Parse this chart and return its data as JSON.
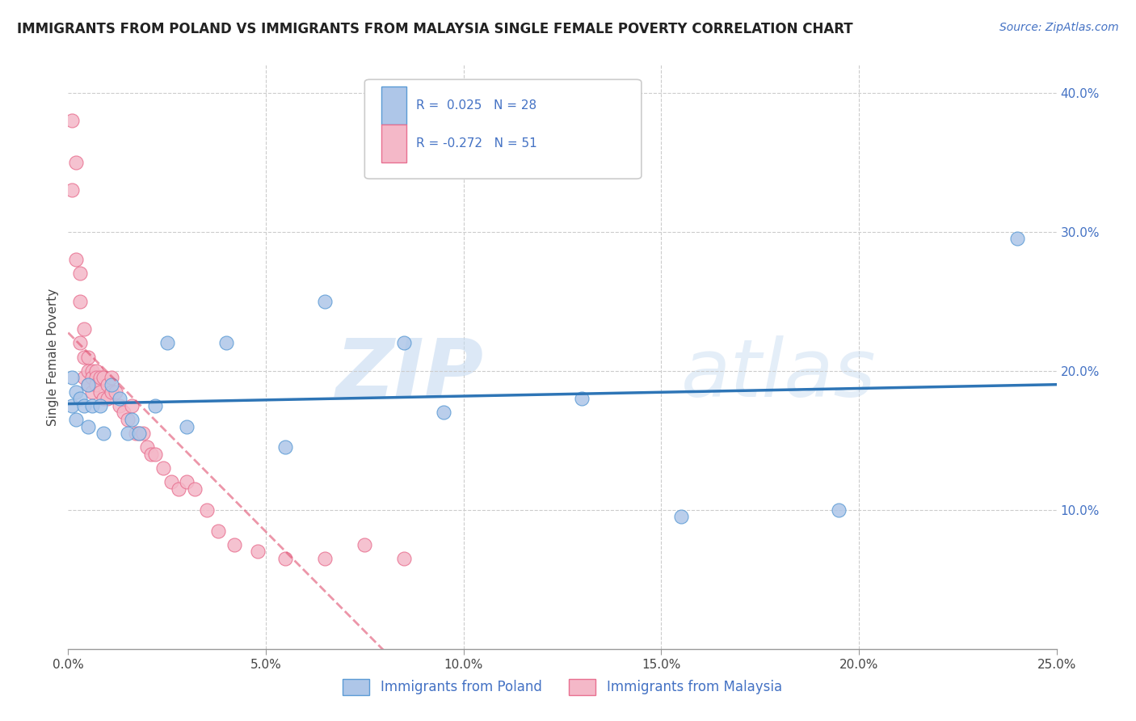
{
  "title": "IMMIGRANTS FROM POLAND VS IMMIGRANTS FROM MALAYSIA SINGLE FEMALE POVERTY CORRELATION CHART",
  "source_text": "Source: ZipAtlas.com",
  "ylabel": "Single Female Poverty",
  "xlim": [
    0.0,
    0.25
  ],
  "ylim": [
    0.0,
    0.42
  ],
  "xtick_labels": [
    "0.0%",
    "",
    "",
    "",
    "",
    "",
    "",
    "",
    "",
    "",
    "5.0%",
    "",
    "",
    "",
    "",
    "",
    "",
    "",
    "",
    "",
    "10.0%",
    "",
    "",
    "",
    "",
    "",
    "",
    "",
    "",
    "",
    "15.0%",
    "",
    "",
    "",
    "",
    "",
    "",
    "",
    "",
    "",
    "20.0%",
    "",
    "",
    "",
    "",
    "",
    "",
    "",
    "",
    "",
    "25.0%"
  ],
  "xtick_vals_major": [
    0.0,
    0.05,
    0.1,
    0.15,
    0.2,
    0.25
  ],
  "xtick_major_labels": [
    "0.0%",
    "5.0%",
    "10.0%",
    "15.0%",
    "20.0%",
    "25.0%"
  ],
  "ytick_vals": [
    0.1,
    0.2,
    0.3,
    0.4
  ],
  "ytick_labels": [
    "10.0%",
    "20.0%",
    "30.0%",
    "40.0%"
  ],
  "poland_color": "#aec6e8",
  "malaysia_color": "#f4b8c8",
  "poland_edge": "#5b9bd5",
  "malaysia_edge": "#e87090",
  "trend_poland_color": "#2e75b6",
  "trend_malaysia_color": "#e05070",
  "watermark_zip": "ZIP",
  "watermark_atlas": "atlas",
  "legend_r_poland": "0.025",
  "legend_n_poland": "28",
  "legend_r_malaysia": "-0.272",
  "legend_n_malaysia": "51",
  "poland_x": [
    0.001,
    0.001,
    0.002,
    0.002,
    0.003,
    0.004,
    0.005,
    0.005,
    0.006,
    0.008,
    0.009,
    0.011,
    0.013,
    0.015,
    0.016,
    0.018,
    0.022,
    0.025,
    0.03,
    0.04,
    0.055,
    0.065,
    0.085,
    0.095,
    0.13,
    0.155,
    0.195,
    0.24
  ],
  "poland_y": [
    0.195,
    0.175,
    0.185,
    0.165,
    0.18,
    0.175,
    0.16,
    0.19,
    0.175,
    0.175,
    0.155,
    0.19,
    0.18,
    0.155,
    0.165,
    0.155,
    0.175,
    0.22,
    0.16,
    0.22,
    0.145,
    0.25,
    0.22,
    0.17,
    0.18,
    0.095,
    0.1,
    0.295
  ],
  "malaysia_x": [
    0.001,
    0.001,
    0.002,
    0.002,
    0.003,
    0.003,
    0.003,
    0.004,
    0.004,
    0.004,
    0.005,
    0.005,
    0.005,
    0.006,
    0.006,
    0.006,
    0.007,
    0.007,
    0.007,
    0.008,
    0.008,
    0.009,
    0.009,
    0.01,
    0.01,
    0.011,
    0.011,
    0.012,
    0.013,
    0.014,
    0.015,
    0.016,
    0.017,
    0.018,
    0.019,
    0.02,
    0.021,
    0.022,
    0.024,
    0.026,
    0.028,
    0.03,
    0.032,
    0.035,
    0.038,
    0.042,
    0.048,
    0.055,
    0.065,
    0.075,
    0.085
  ],
  "malaysia_y": [
    0.38,
    0.33,
    0.35,
    0.28,
    0.27,
    0.25,
    0.22,
    0.23,
    0.21,
    0.195,
    0.21,
    0.2,
    0.19,
    0.2,
    0.195,
    0.185,
    0.2,
    0.195,
    0.19,
    0.195,
    0.185,
    0.195,
    0.18,
    0.19,
    0.18,
    0.195,
    0.185,
    0.185,
    0.175,
    0.17,
    0.165,
    0.175,
    0.155,
    0.155,
    0.155,
    0.145,
    0.14,
    0.14,
    0.13,
    0.12,
    0.115,
    0.12,
    0.115,
    0.1,
    0.085,
    0.075,
    0.07,
    0.065,
    0.065,
    0.075,
    0.065
  ]
}
